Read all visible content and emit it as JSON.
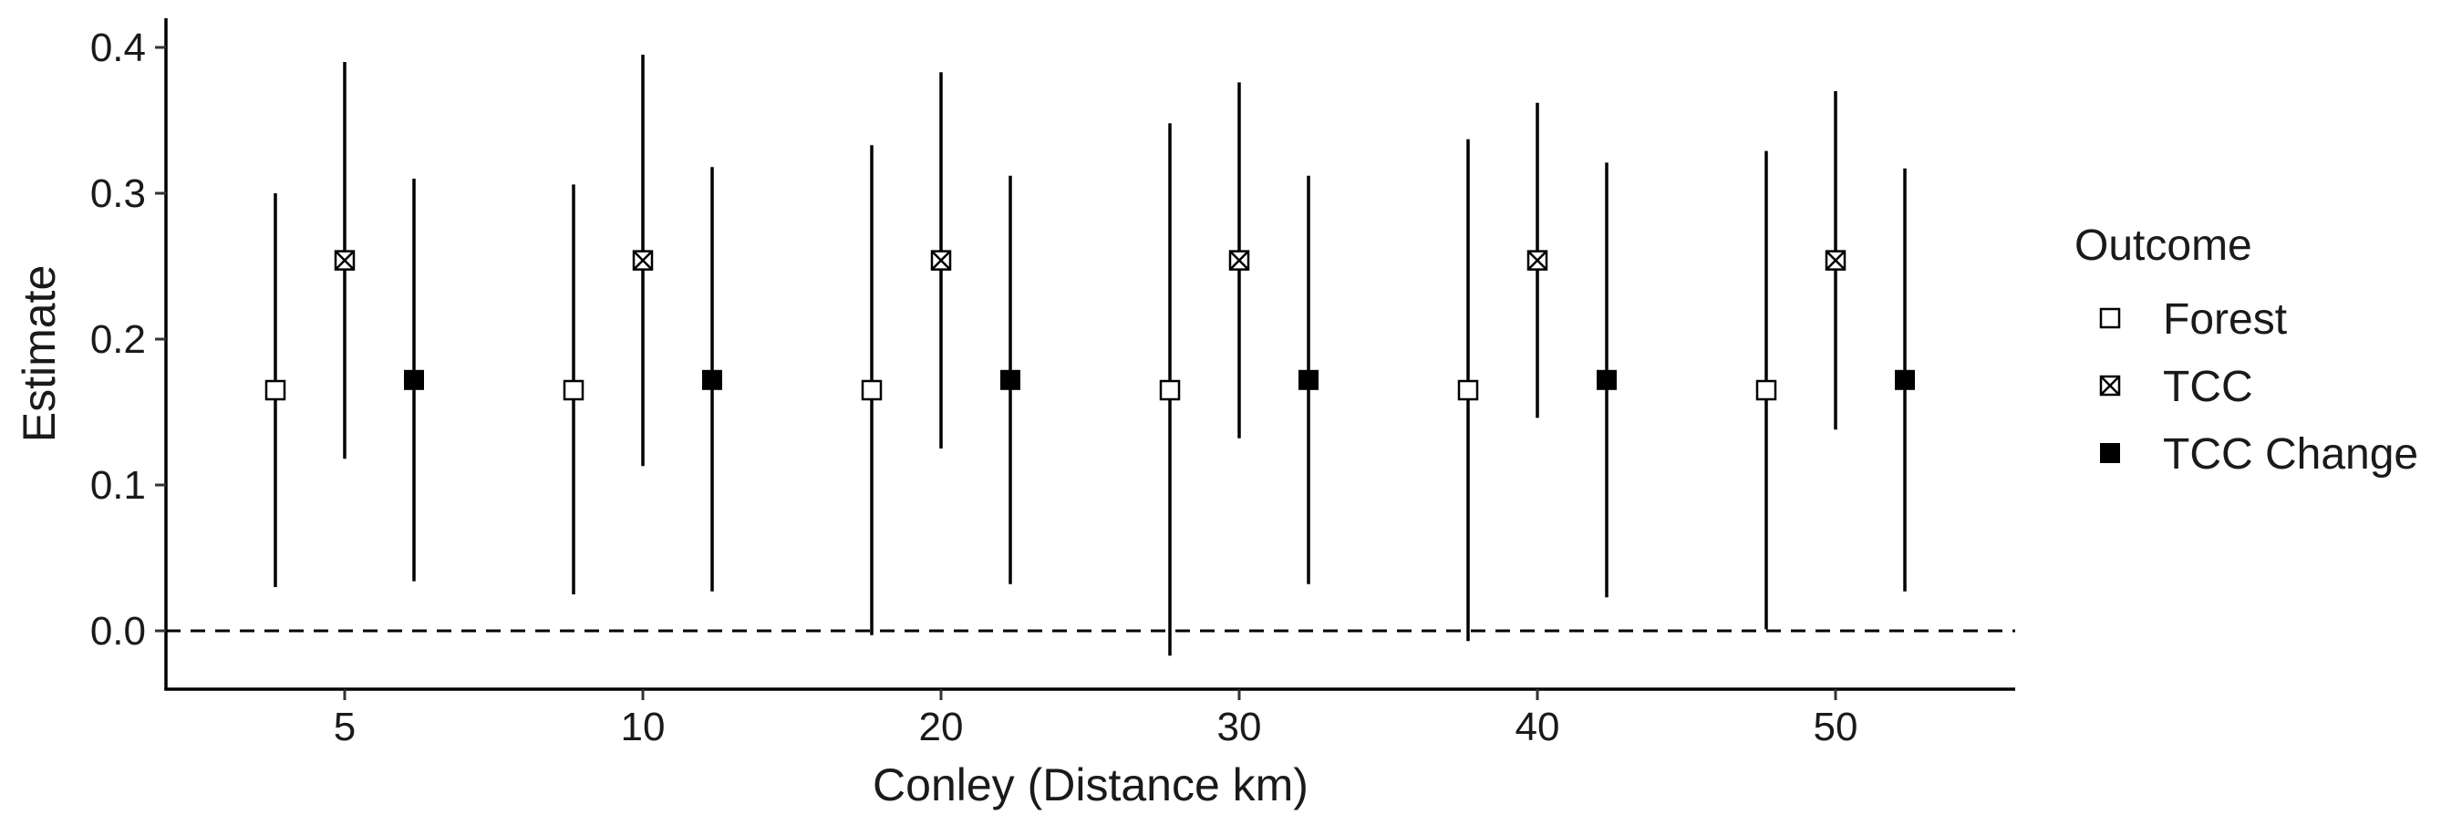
{
  "chart_data": {
    "type": "scatter",
    "subtype": "point-range",
    "xlabel": "Conley (Distance km)",
    "ylabel": "Estimate",
    "categories": [
      "5",
      "10",
      "20",
      "30",
      "40",
      "50"
    ],
    "ylim": [
      -0.04,
      0.42
    ],
    "y_ticks": [
      "0.0",
      "0.1",
      "0.2",
      "0.3",
      "0.4"
    ],
    "reference_line": {
      "y": 0,
      "style": "dashed"
    },
    "grid": false,
    "legend": {
      "title": "Outcome",
      "position": "right"
    },
    "series": [
      {
        "name": "Forest",
        "marker": "open-square",
        "values": [
          0.165,
          0.165,
          0.165,
          0.165,
          0.165,
          0.165
        ],
        "lower": [
          0.03,
          0.025,
          -0.003,
          -0.017,
          -0.007,
          0.001
        ],
        "upper": [
          0.3,
          0.306,
          0.333,
          0.348,
          0.337,
          0.329
        ]
      },
      {
        "name": "TCC",
        "marker": "crossed-square",
        "values": [
          0.254,
          0.254,
          0.254,
          0.254,
          0.254,
          0.254
        ],
        "lower": [
          0.118,
          0.113,
          0.125,
          0.132,
          0.146,
          0.138
        ],
        "upper": [
          0.39,
          0.395,
          0.383,
          0.376,
          0.362,
          0.37
        ]
      },
      {
        "name": "TCC Change",
        "marker": "filled-square",
        "values": [
          0.172,
          0.172,
          0.172,
          0.172,
          0.172,
          0.172
        ],
        "lower": [
          0.034,
          0.027,
          0.032,
          0.032,
          0.023,
          0.027
        ],
        "upper": [
          0.31,
          0.318,
          0.312,
          0.312,
          0.321,
          0.317
        ]
      }
    ]
  }
}
